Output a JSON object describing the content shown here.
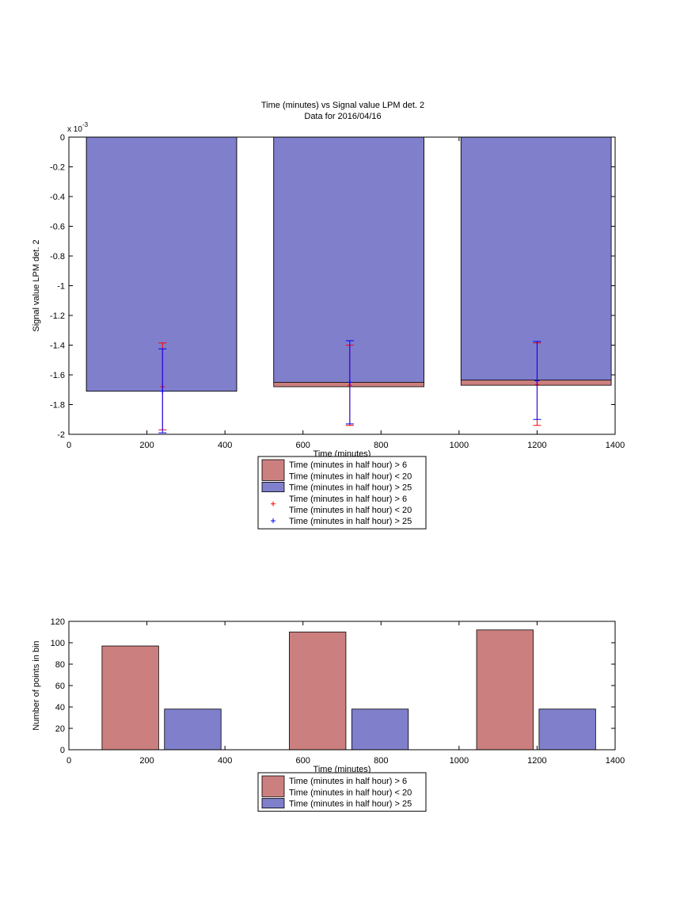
{
  "figure": {
    "top_chart": {
      "title_line1": "Time (minutes) vs Signal value LPM det. 2",
      "title_line2": "Data for 2016/04/16"
    }
  },
  "chart_data": [
    {
      "type": "bar",
      "title": "Time (minutes) vs Signal value LPM det. 2",
      "subtitle": "Data for 2016/04/16",
      "xlabel": "Time (minutes)",
      "ylabel": "Signal value LPM det. 2",
      "y_exponent_label": "x 10",
      "y_exponent_power": "-3",
      "xlim": [
        0,
        1400
      ],
      "ylim": [
        -2.0,
        0
      ],
      "x_ticks": [
        0,
        200,
        400,
        600,
        800,
        1000,
        1200,
        1400
      ],
      "x_tick_labels": [
        "0",
        "200",
        "400",
        "600",
        "800",
        "1000",
        "1200",
        "1400"
      ],
      "y_ticks": [
        0,
        -0.2,
        -0.4,
        -0.6,
        -0.8,
        -1.0,
        -1.2,
        -1.4,
        -1.6,
        -1.8,
        -2.0
      ],
      "y_tick_labels": [
        "0",
        "-0.2",
        "-0.4",
        "-0.6",
        "-0.8",
        "-1",
        "-1.2",
        "-1.4",
        "-1.6",
        "-1.8",
        "-2"
      ],
      "grid": false,
      "legend_position": "below",
      "legend": [
        {
          "kind": "patch",
          "color": "#cc7f7f",
          "line1": "Time (minutes in half hour) > 6",
          "line2": "Time (minutes in half hour) < 20"
        },
        {
          "kind": "patch",
          "color": "#7f7fcc",
          "line1": "Time (minutes in half hour) > 25",
          "line2": ""
        },
        {
          "kind": "marker",
          "color": "#ff0000",
          "line1": "Time (minutes in half hour) > 6",
          "line2": "Time (minutes in half hour) < 20"
        },
        {
          "kind": "marker",
          "color": "#0000ff",
          "line1": "Time (minutes in half hour) > 25",
          "line2": ""
        }
      ],
      "bar_x_ranges": [
        [
          45,
          430
        ],
        [
          525,
          910
        ],
        [
          1005,
          1390
        ]
      ],
      "series": [
        {
          "name": "Time (minutes in half hour) > 6 Time (minutes in half hour) < 20",
          "color": "#cc7f7f",
          "values": [
            -1.71,
            -1.68,
            -1.67
          ]
        },
        {
          "name": "Time (minutes in half hour) > 25",
          "color": "#7f7fcc",
          "values": [
            -1.71,
            -1.65,
            -1.635
          ]
        }
      ],
      "errorbars": [
        {
          "series": "Time (minutes in half hour) > 6 Time (minutes in half hour) < 20",
          "color": "#ff0000",
          "x": [
            240,
            720,
            1200
          ],
          "center": [
            -1.68,
            -1.67,
            -1.665
          ],
          "low": [
            -1.97,
            -1.94,
            -1.94
          ],
          "high": [
            -1.385,
            -1.4,
            -1.385
          ]
        },
        {
          "series": "Time (minutes in half hour) > 25",
          "color": "#0000ff",
          "x": [
            240,
            720,
            1200
          ],
          "center": [
            -1.71,
            -1.65,
            -1.64
          ],
          "low": [
            -1.99,
            -1.93,
            -1.9
          ],
          "high": [
            -1.425,
            -1.37,
            -1.375
          ]
        }
      ]
    },
    {
      "type": "bar",
      "title": "",
      "xlabel": "Time (minutes)",
      "ylabel": "Number of points in bin",
      "xlim": [
        0,
        1400
      ],
      "ylim": [
        0,
        120
      ],
      "x_ticks": [
        0,
        200,
        400,
        600,
        800,
        1000,
        1200,
        1400
      ],
      "x_tick_labels": [
        "0",
        "200",
        "400",
        "600",
        "800",
        "1000",
        "1200",
        "1400"
      ],
      "y_ticks": [
        0,
        20,
        40,
        60,
        80,
        100,
        120
      ],
      "y_tick_labels": [
        "0",
        "20",
        "40",
        "60",
        "80",
        "100",
        "120"
      ],
      "grid": false,
      "legend_position": "below",
      "legend": [
        {
          "kind": "patch",
          "color": "#cc7f7f",
          "line1": "Time (minutes in half hour) > 6",
          "line2": "Time (minutes in half hour) < 20"
        },
        {
          "kind": "patch",
          "color": "#7f7fcc",
          "line1": "Time (minutes in half hour) > 25",
          "line2": ""
        }
      ],
      "series": [
        {
          "name": "Time (minutes in half hour) > 6 Time (minutes in half hour) < 20",
          "color": "#cc7f7f",
          "x_ranges": [
            [
              85,
              230
            ],
            [
              565,
              710
            ],
            [
              1045,
              1190
            ]
          ],
          "values": [
            97,
            110,
            112
          ]
        },
        {
          "name": "Time (minutes in half hour) > 25",
          "color": "#7f7fcc",
          "x_ranges": [
            [
              245,
              390
            ],
            [
              725,
              870
            ],
            [
              1205,
              1350
            ]
          ],
          "values": [
            38,
            38,
            38
          ]
        }
      ]
    }
  ]
}
